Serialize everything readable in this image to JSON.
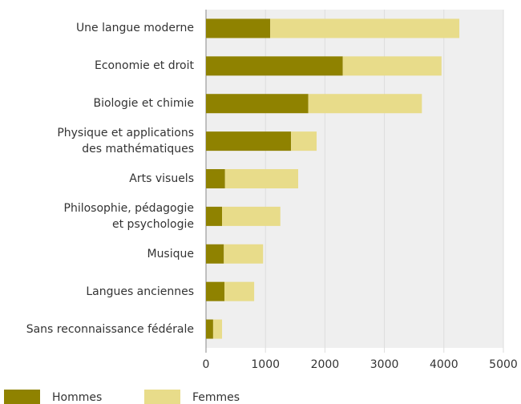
{
  "chart_data": {
    "type": "stacked-barh",
    "categories": [
      "Une langue moderne",
      "Economie et droit",
      "Biologie et chimie",
      "Physique et applications\ndes mathématiques",
      "Arts visuels",
      "Philosophie, pédagogie\net psychologie",
      "Musique",
      "Langues anciennes",
      "Sans reconnaissance fédérale"
    ],
    "series": [
      {
        "name": "Hommes",
        "color": "#8f8200",
        "values": [
          1080,
          2300,
          1720,
          1430,
          320,
          270,
          300,
          310,
          120
        ]
      },
      {
        "name": "Femmes",
        "color": "#e8dc8a",
        "values": [
          3180,
          1660,
          1910,
          430,
          1230,
          980,
          660,
          500,
          150
        ]
      }
    ],
    "xlim": [
      0,
      5000
    ],
    "xticks": [
      0,
      1000,
      2000,
      3000,
      4000,
      5000
    ],
    "grid": true,
    "legend": "bottom-left"
  }
}
